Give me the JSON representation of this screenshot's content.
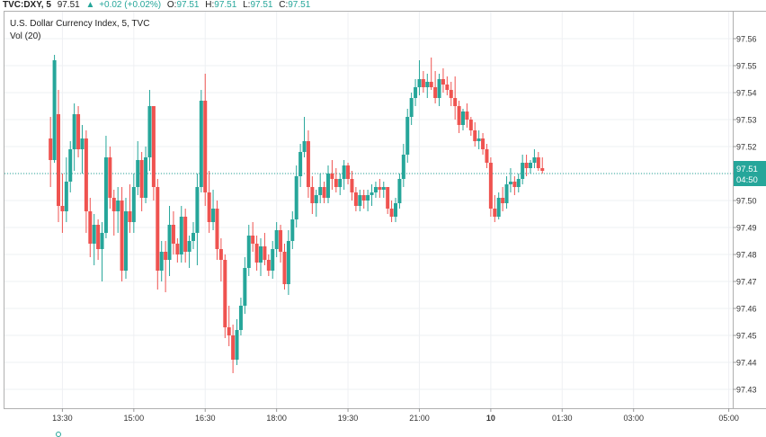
{
  "header": {
    "symbol": "TVC:DXY, 5",
    "last": "97.51",
    "change": "+0.02 (+0.02%)",
    "o_label": "O:",
    "o_value": "97.51",
    "h_label": "H:",
    "h_value": "97.51",
    "l_label": "L:",
    "l_value": "97.51",
    "c_label": "C:",
    "c_value": "97.51"
  },
  "legend": {
    "title": "U.S. Dollar Currency Index, 5, TVC",
    "volume": "Vol (20)"
  },
  "price_badge": {
    "price": "97.51",
    "countdown": "04:50"
  },
  "colors": {
    "up": "#26a69a",
    "down": "#ef5350",
    "grid": "#eef0f3",
    "badge": "#26a69a"
  },
  "chart_data": {
    "type": "candlestick",
    "title": "U.S. Dollar Currency Index, 5, TVC",
    "ylim": [
      97.423,
      97.57
    ],
    "y_ticks": [
      "97.43",
      "97.44",
      "97.45",
      "97.46",
      "97.47",
      "97.48",
      "97.49",
      "97.50",
      "97.51",
      "97.52",
      "97.53",
      "97.54",
      "97.55",
      "97.56"
    ],
    "x_ticks": [
      {
        "label": "13:30",
        "t": 3
      },
      {
        "label": "15:00",
        "t": 21
      },
      {
        "label": "16:30",
        "t": 39
      },
      {
        "label": "18:00",
        "t": 57
      },
      {
        "label": "19:30",
        "t": 75
      },
      {
        "label": "21:00",
        "t": 93
      },
      {
        "label": "10",
        "t": 111
      },
      {
        "label": "01:30",
        "t": 129
      },
      {
        "label": "03:00",
        "t": 147
      },
      {
        "label": "05:00",
        "t": 171
      }
    ],
    "x_range": [
      -11.6,
      172
    ],
    "grid": true,
    "last_price": 97.51,
    "ohlc": [
      [
        97.523,
        97.531,
        97.505,
        97.515
      ],
      [
        97.515,
        97.554,
        97.514,
        97.552
      ],
      [
        97.532,
        97.541,
        97.492,
        97.498
      ],
      [
        97.498,
        97.51,
        97.488,
        97.496
      ],
      [
        97.496,
        97.516,
        97.492,
        97.507
      ],
      [
        97.507,
        97.522,
        97.503,
        97.519
      ],
      [
        97.519,
        97.536,
        97.511,
        97.532
      ],
      [
        97.532,
        97.535,
        97.516,
        97.519
      ],
      [
        97.519,
        97.528,
        97.51,
        97.523
      ],
      [
        97.523,
        97.526,
        97.488,
        97.496
      ],
      [
        97.496,
        97.501,
        97.479,
        97.484
      ],
      [
        97.484,
        97.495,
        97.476,
        97.491
      ],
      [
        97.491,
        97.493,
        97.478,
        97.482
      ],
      [
        97.482,
        97.492,
        97.47,
        97.488
      ],
      [
        97.488,
        97.524,
        97.486,
        97.516
      ],
      [
        97.516,
        97.52,
        97.497,
        97.501
      ],
      [
        97.501,
        97.504,
        97.487,
        97.496
      ],
      [
        97.496,
        97.505,
        97.488,
        97.5
      ],
      [
        97.5,
        97.505,
        97.47,
        97.474
      ],
      [
        97.474,
        97.501,
        97.471,
        97.496
      ],
      [
        97.496,
        97.506,
        97.488,
        97.492
      ],
      [
        97.492,
        97.51,
        97.488,
        97.505
      ],
      [
        97.505,
        97.522,
        97.502,
        97.515
      ],
      [
        97.515,
        97.518,
        97.496,
        97.501
      ],
      [
        97.501,
        97.52,
        97.499,
        97.516
      ],
      [
        97.516,
        97.541,
        97.511,
        97.535
      ],
      [
        97.535,
        97.535,
        97.5,
        97.505
      ],
      [
        97.505,
        97.508,
        97.467,
        97.474
      ],
      [
        97.474,
        97.485,
        97.47,
        97.481
      ],
      [
        97.481,
        97.485,
        97.466,
        97.478
      ],
      [
        97.478,
        97.498,
        97.472,
        97.491
      ],
      [
        97.491,
        97.496,
        97.48,
        97.484
      ],
      [
        97.484,
        97.486,
        97.477,
        97.48
      ],
      [
        97.48,
        97.498,
        97.477,
        97.494
      ],
      [
        97.494,
        97.497,
        97.477,
        97.481
      ],
      [
        97.481,
        97.487,
        97.475,
        97.485
      ],
      [
        97.485,
        97.492,
        97.482,
        97.488
      ],
      [
        97.488,
        97.51,
        97.476,
        97.505
      ],
      [
        97.505,
        97.541,
        97.503,
        97.537
      ],
      [
        97.537,
        97.547,
        97.498,
        97.503
      ],
      [
        97.503,
        97.511,
        97.488,
        97.492
      ],
      [
        97.492,
        97.504,
        97.489,
        97.497
      ],
      [
        97.497,
        97.5,
        97.478,
        97.482
      ],
      [
        97.482,
        97.486,
        97.47,
        97.478
      ],
      [
        97.478,
        97.48,
        97.449,
        97.453
      ],
      [
        97.453,
        97.461,
        97.446,
        97.45
      ],
      [
        97.45,
        97.454,
        97.436,
        97.441
      ],
      [
        97.441,
        97.456,
        97.439,
        97.452
      ],
      [
        97.452,
        97.464,
        97.45,
        97.461
      ],
      [
        97.461,
        97.479,
        97.458,
        97.475
      ],
      [
        97.475,
        97.491,
        97.472,
        97.487
      ],
      [
        97.487,
        97.492,
        97.481,
        97.484
      ],
      [
        97.484,
        97.487,
        97.474,
        97.477
      ],
      [
        97.477,
        97.486,
        97.472,
        97.483
      ],
      [
        97.483,
        97.488,
        97.476,
        97.478
      ],
      [
        97.478,
        97.48,
        97.472,
        97.474
      ],
      [
        97.474,
        97.485,
        97.471,
        97.482
      ],
      [
        97.482,
        97.492,
        97.479,
        97.489
      ],
      [
        97.489,
        97.491,
        97.477,
        97.481
      ],
      [
        97.481,
        97.484,
        97.467,
        97.469
      ],
      [
        97.469,
        97.489,
        97.465,
        97.485
      ],
      [
        97.485,
        97.496,
        97.482,
        97.493
      ],
      [
        97.493,
        97.513,
        97.49,
        97.509
      ],
      [
        97.509,
        97.521,
        97.505,
        97.518
      ],
      [
        97.518,
        97.531,
        97.516,
        97.522
      ],
      [
        97.522,
        97.526,
        97.501,
        97.505
      ],
      [
        97.505,
        97.509,
        97.495,
        97.499
      ],
      [
        97.499,
        97.504,
        97.494,
        97.502
      ],
      [
        97.502,
        97.51,
        97.499,
        97.505
      ],
      [
        97.505,
        97.507,
        97.499,
        97.501
      ],
      [
        97.501,
        97.513,
        97.499,
        97.51
      ],
      [
        97.51,
        97.515,
        97.504,
        97.508
      ],
      [
        97.508,
        97.512,
        97.503,
        97.505
      ],
      [
        97.505,
        97.51,
        97.502,
        97.508
      ],
      [
        97.508,
        97.515,
        97.504,
        97.513
      ],
      [
        97.513,
        97.514,
        97.506,
        97.508
      ],
      [
        97.508,
        97.511,
        97.5,
        97.503
      ],
      [
        97.503,
        97.505,
        97.496,
        97.498
      ],
      [
        97.498,
        97.504,
        97.496,
        97.502
      ],
      [
        97.502,
        97.504,
        97.497,
        97.5
      ],
      [
        97.5,
        97.504,
        97.496,
        97.502
      ],
      [
        97.502,
        97.506,
        97.498,
        97.503
      ],
      [
        97.503,
        97.507,
        97.501,
        97.505
      ],
      [
        97.505,
        97.508,
        97.501,
        97.504
      ],
      [
        97.504,
        97.507,
        97.501,
        97.505
      ],
      [
        97.505,
        97.505,
        97.495,
        97.497
      ],
      [
        97.497,
        97.5,
        97.492,
        97.494
      ],
      [
        97.494,
        97.501,
        97.492,
        97.499
      ],
      [
        97.499,
        97.51,
        97.497,
        97.508
      ],
      [
        97.508,
        97.521,
        97.505,
        97.517
      ],
      [
        97.517,
        97.534,
        97.514,
        97.531
      ],
      [
        97.531,
        97.54,
        97.528,
        97.538
      ],
      [
        97.538,
        97.545,
        97.535,
        97.542
      ],
      [
        97.542,
        97.552,
        97.539,
        97.545
      ],
      [
        97.545,
        97.548,
        97.54,
        97.542
      ],
      [
        97.542,
        97.547,
        97.538,
        97.544
      ],
      [
        97.544,
        97.553,
        97.541,
        97.542
      ],
      [
        97.542,
        97.548,
        97.536,
        97.538
      ],
      [
        97.538,
        97.547,
        97.535,
        97.545
      ],
      [
        97.545,
        97.549,
        97.54,
        97.543
      ],
      [
        97.543,
        97.546,
        97.539,
        97.541
      ],
      [
        97.541,
        97.544,
        97.535,
        97.538
      ],
      [
        97.538,
        97.546,
        97.53,
        97.535
      ],
      [
        97.535,
        97.537,
        97.525,
        97.528
      ],
      [
        97.528,
        97.534,
        97.526,
        97.533
      ],
      [
        97.533,
        97.536,
        97.527,
        97.53
      ],
      [
        97.53,
        97.531,
        97.524,
        97.526
      ],
      [
        97.526,
        97.529,
        97.52,
        97.522
      ],
      [
        97.522,
        97.526,
        97.519,
        97.523
      ],
      [
        97.523,
        97.525,
        97.517,
        97.519
      ],
      [
        97.519,
        97.521,
        97.512,
        97.514
      ],
      [
        97.514,
        97.516,
        97.494,
        97.497
      ],
      [
        97.497,
        97.502,
        97.492,
        97.494
      ],
      [
        97.494,
        97.503,
        97.493,
        97.501
      ],
      [
        97.501,
        97.505,
        97.496,
        97.499
      ],
      [
        97.499,
        97.509,
        97.497,
        97.506
      ],
      [
        97.506,
        97.512,
        97.503,
        97.507
      ],
      [
        97.507,
        97.509,
        97.502,
        97.505
      ],
      [
        97.505,
        97.51,
        97.503,
        97.508
      ],
      [
        97.508,
        97.517,
        97.506,
        97.514
      ],
      [
        97.514,
        97.517,
        97.509,
        97.512
      ],
      [
        97.512,
        97.515,
        97.51,
        97.514
      ],
      [
        97.514,
        97.519,
        97.512,
        97.516
      ],
      [
        97.516,
        97.518,
        97.511,
        97.512
      ],
      [
        97.512,
        97.516,
        97.51,
        97.511
      ]
    ]
  }
}
